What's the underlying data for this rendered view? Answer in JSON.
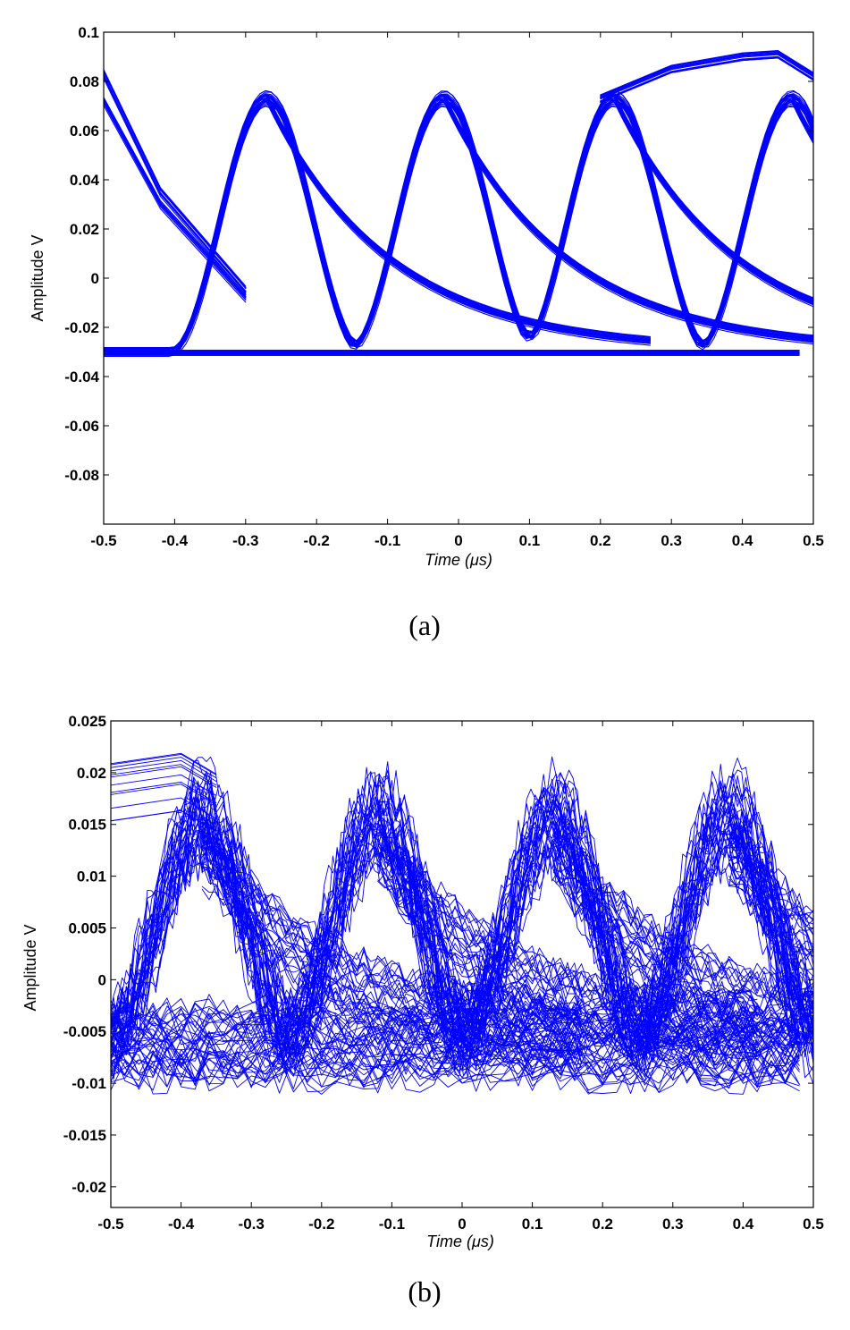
{
  "chart_data": [
    {
      "type": "line",
      "panel": "a",
      "caption": "(a)",
      "xlabel": "Time (μs)",
      "ylabel": "Amplitude  V",
      "xlim": [
        -0.5,
        0.5
      ],
      "ylim": [
        -0.1,
        0.1
      ],
      "xticks": [
        "-0.5",
        "-0.4",
        "-0.3",
        "-0.2",
        "-0.1",
        "0",
        "0.1",
        "0.2",
        "0.3",
        "0.4",
        "0.5"
      ],
      "yticks": [
        "-0.08",
        "-0.06",
        "-0.04",
        "-0.02",
        "0",
        "0.02",
        "0.04",
        "0.06",
        "0.08",
        "0.1"
      ],
      "trace_color": "#0000ff",
      "eye_diagram": {
        "low_level": -0.03,
        "high_level": 0.073,
        "peak_times": [
          -0.27,
          -0.02,
          0.22,
          0.47
        ],
        "crossing_level": 0.028,
        "upper_envelope": {
          "x": [
            0.2,
            0.3,
            0.4,
            0.45,
            0.5
          ],
          "y": [
            0.073,
            0.085,
            0.09,
            0.091,
            0.082
          ]
        },
        "left_edge_falling": [
          {
            "x": [
              -0.5,
              -0.42,
              -0.3
            ],
            "y": [
              0.083,
              0.035,
              -0.005
            ]
          },
          {
            "x": [
              -0.5,
              -0.42,
              -0.3
            ],
            "y": [
              0.072,
              0.03,
              -0.008
            ]
          }
        ]
      }
    },
    {
      "type": "line",
      "panel": "b",
      "caption": "(b)",
      "xlabel": "Time (μs)",
      "ylabel": "Amplitude  V",
      "xlim": [
        -0.5,
        0.5
      ],
      "ylim": [
        -0.022,
        0.025
      ],
      "xticks": [
        "-0.5",
        "-0.4",
        "-0.3",
        "-0.2",
        "-0.1",
        "0",
        "0.1",
        "0.2",
        "0.3",
        "0.4",
        "0.5"
      ],
      "yticks": [
        "-0.02",
        "-0.015",
        "-0.01",
        "-0.005",
        "0",
        "0.005",
        "0.01",
        "0.015",
        "0.02",
        "0.025"
      ],
      "trace_color": "#0000ff",
      "eye_diagram": {
        "low_level": -0.006,
        "high_level": 0.015,
        "peak_times": [
          -0.37,
          -0.12,
          0.13,
          0.38
        ],
        "crossing_level": 0.006,
        "upper_envelope": {
          "x": [
            -0.5,
            -0.4,
            -0.35
          ],
          "y": [
            0.018,
            0.019,
            0.017
          ]
        },
        "noise_band": 0.003
      }
    }
  ]
}
